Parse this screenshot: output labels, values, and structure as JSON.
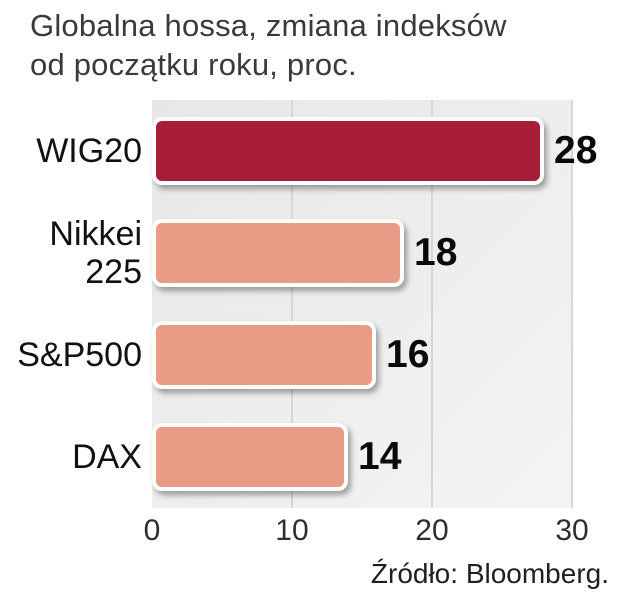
{
  "title": {
    "line1": "Globalna hossa, zmiana indeksów",
    "line2": "od początku roku, proc."
  },
  "source": "Źródło: Bloomberg.",
  "chart_data": {
    "type": "bar",
    "orientation": "horizontal",
    "title": "Globalna hossa, zmiana indeksów od początku roku, proc.",
    "categories": [
      "WIG20",
      "Nikkei 225",
      "S&P500",
      "DAX"
    ],
    "values": [
      28,
      18,
      16,
      14
    ],
    "xlim": [
      0,
      30
    ],
    "xticks": [
      0,
      10,
      20,
      30
    ],
    "grid": true,
    "legend": false,
    "bar_colors": [
      "#a81d38",
      "#e89b85",
      "#e89b85",
      "#e89b85"
    ],
    "highlight_index": 0,
    "plot_bg": "#ececec",
    "source": "Źródło: Bloomberg."
  }
}
